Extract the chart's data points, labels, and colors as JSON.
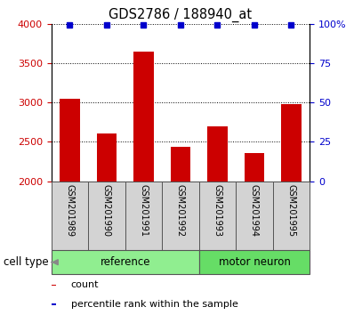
{
  "title": "GDS2786 / 188940_at",
  "samples": [
    "GSM201989",
    "GSM201990",
    "GSM201991",
    "GSM201992",
    "GSM201993",
    "GSM201994",
    "GSM201995"
  ],
  "counts": [
    3050,
    2600,
    3650,
    2440,
    2700,
    2360,
    2980
  ],
  "percentiles": [
    99,
    99,
    99,
    99,
    99,
    99,
    99
  ],
  "groups": [
    {
      "label": "reference",
      "indices": [
        0,
        1,
        2,
        3
      ],
      "color": "#90EE90"
    },
    {
      "label": "motor neuron",
      "indices": [
        4,
        5,
        6
      ],
      "color": "#66DD66"
    }
  ],
  "bar_color": "#CC0000",
  "marker_color": "#0000CC",
  "left_axis_color": "#CC0000",
  "right_axis_color": "#0000CC",
  "ylim_left": [
    2000,
    4000
  ],
  "ylim_right": [
    0,
    100
  ],
  "yticks_left": [
    2000,
    2500,
    3000,
    3500,
    4000
  ],
  "yticks_right_vals": [
    0,
    25,
    50,
    75,
    100
  ],
  "yticks_right_labels": [
    "0",
    "25",
    "50",
    "75",
    "100%"
  ],
  "bg_color_sample": "#D3D3D3",
  "cell_type_label": "cell type",
  "legend_count_label": "count",
  "legend_percentile_label": "percentile rank within the sample",
  "fig_width": 3.98,
  "fig_height": 3.54,
  "dpi": 100
}
